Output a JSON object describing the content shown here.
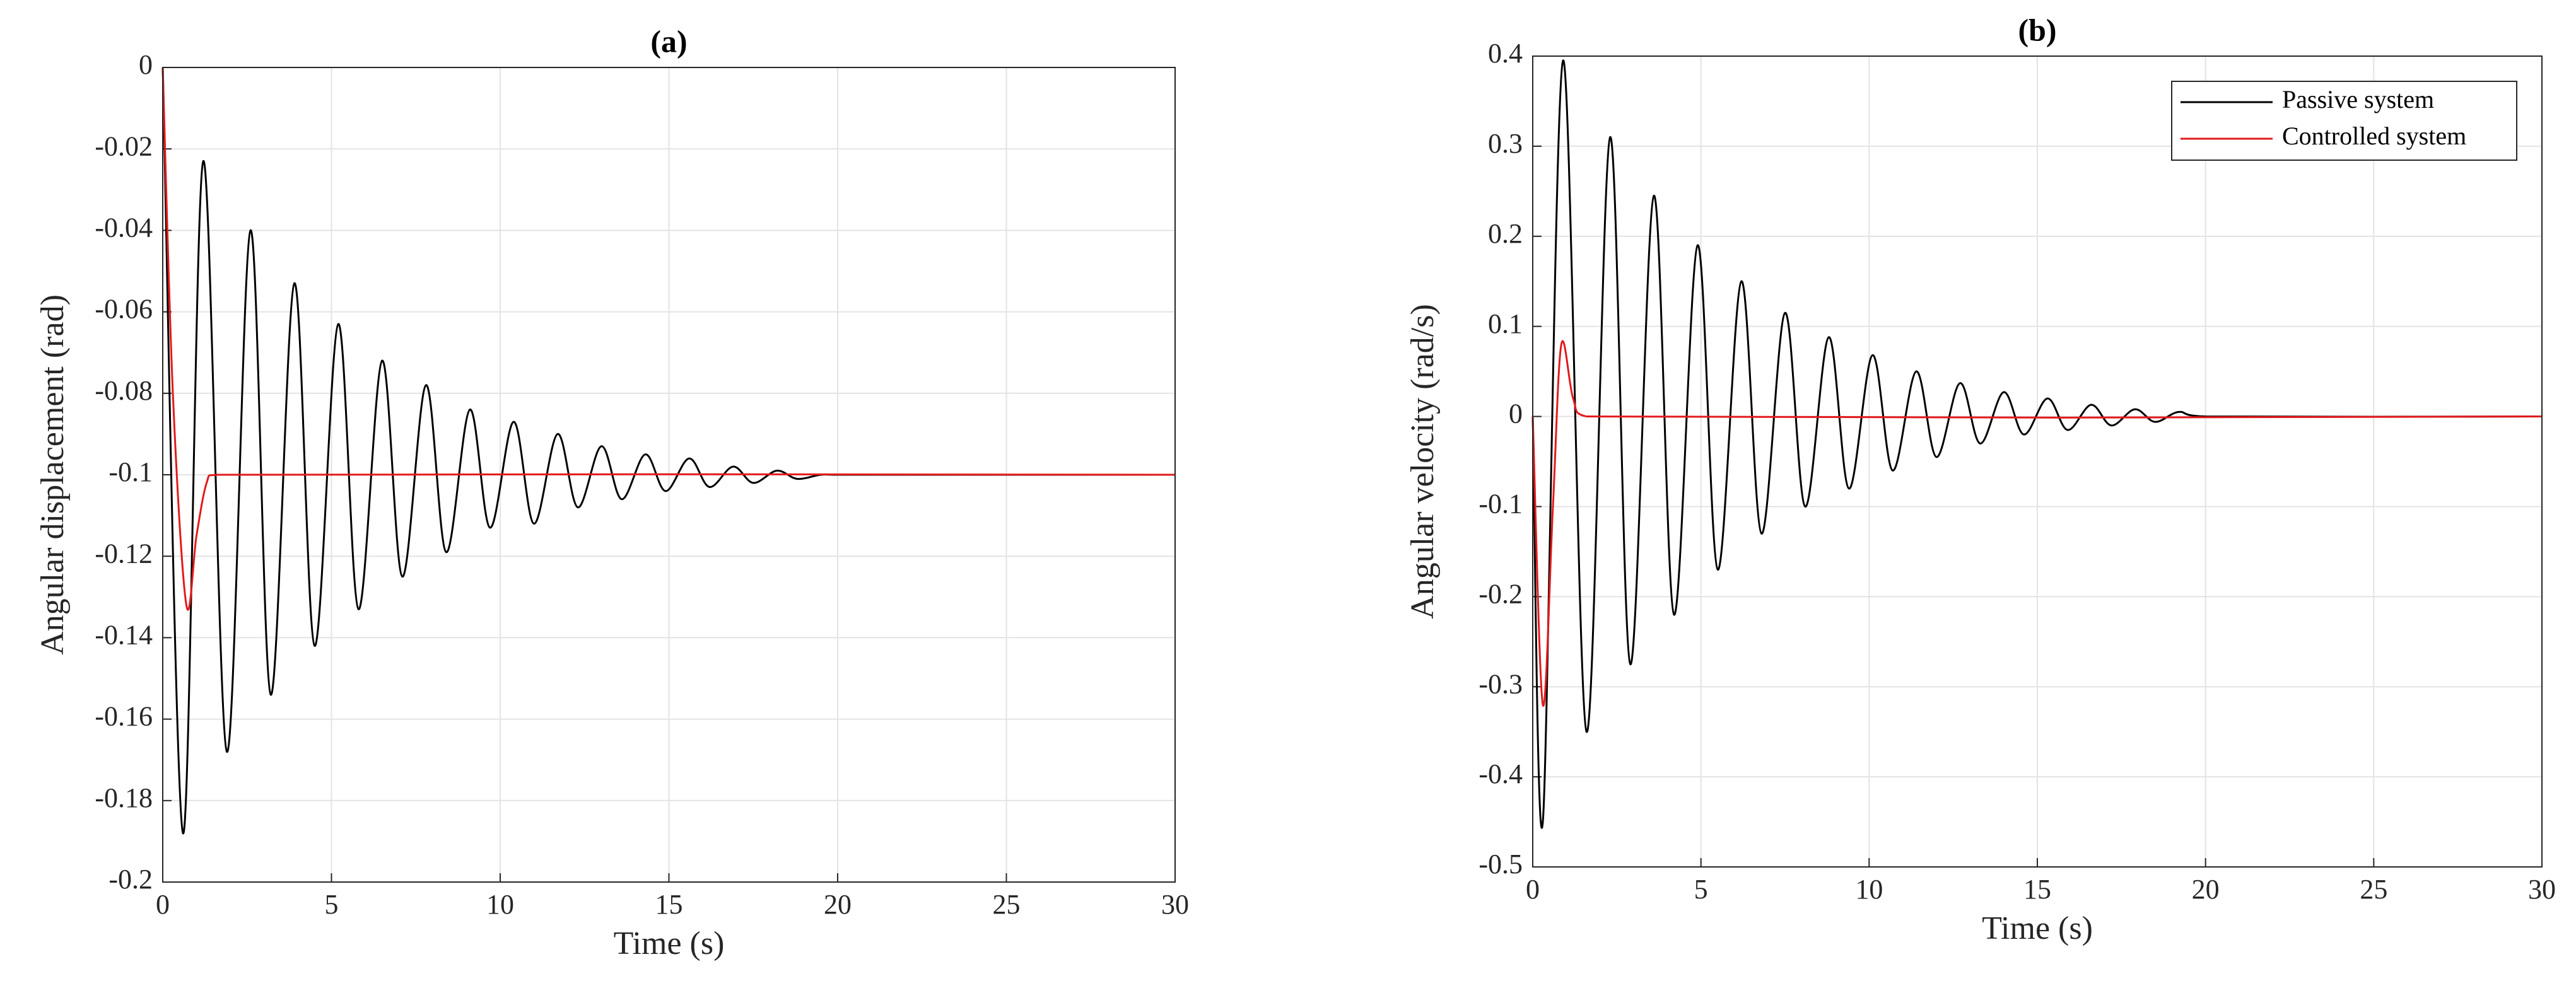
{
  "chart_data": [
    {
      "type": "line",
      "title": "(a)",
      "x_label": "Time (s)",
      "y_label": "Angular displacement (rad)",
      "xlim": [
        0,
        30
      ],
      "xticks": [
        0,
        5,
        10,
        15,
        20,
        25,
        30
      ],
      "ylim": [
        -0.2,
        0
      ],
      "yticks": [
        -0.2,
        -0.18,
        -0.16,
        -0.14,
        -0.12,
        -0.1,
        -0.08,
        -0.06,
        -0.04,
        -0.02,
        0
      ],
      "grid": true,
      "legend": false,
      "series": [
        {
          "color": "#000000",
          "x": [
            0,
            0.6,
            1.2,
            1.9,
            2.6,
            3.2,
            3.9,
            4.5,
            5.2,
            5.8,
            6.5,
            7.1,
            7.8,
            8.4,
            9.1,
            9.7,
            10.4,
            11.0,
            11.7,
            12.3,
            13.0,
            13.6,
            14.3,
            14.9,
            15.6,
            16.2,
            16.9,
            17.5,
            18.2,
            18.8,
            19.5,
            20,
            30
          ],
          "values": [
            0,
            -0.188,
            -0.023,
            -0.168,
            -0.04,
            -0.154,
            -0.053,
            -0.142,
            -0.063,
            -0.133,
            -0.072,
            -0.125,
            -0.078,
            -0.119,
            -0.084,
            -0.113,
            -0.087,
            -0.112,
            -0.09,
            -0.108,
            -0.093,
            -0.106,
            -0.095,
            -0.104,
            -0.096,
            -0.103,
            -0.098,
            -0.102,
            -0.099,
            -0.101,
            -0.1,
            -0.1,
            -0.1
          ]
        },
        {
          "color": "#e31a1c",
          "x": [
            0,
            0.3,
            0.7,
            1.0,
            1.3,
            1.6,
            30
          ],
          "values": [
            0,
            -0.08,
            -0.132,
            -0.115,
            -0.102,
            -0.1,
            -0.1
          ]
        }
      ]
    },
    {
      "type": "line",
      "title": "(b)",
      "x_label": "Time (s)",
      "y_label": "Angular velocity (rad/s)",
      "xlim": [
        0,
        30
      ],
      "xticks": [
        0,
        5,
        10,
        15,
        20,
        25,
        30
      ],
      "ylim": [
        -0.5,
        0.4
      ],
      "yticks": [
        -0.5,
        -0.4,
        -0.3,
        -0.2,
        -0.1,
        0,
        0.1,
        0.2,
        0.3,
        0.4
      ],
      "grid": true,
      "legend": "northeast",
      "series": [
        {
          "name": "Passive system",
          "color": "#000000",
          "x": [
            0,
            0.3,
            0.9,
            1.6,
            2.3,
            2.9,
            3.6,
            4.2,
            4.9,
            5.5,
            6.2,
            6.8,
            7.5,
            8.1,
            8.8,
            9.4,
            10.1,
            10.7,
            11.4,
            12.0,
            12.7,
            13.3,
            14.0,
            14.6,
            15.3,
            15.9,
            16.6,
            17.2,
            17.9,
            18.5,
            19.2,
            20,
            30
          ],
          "values": [
            0,
            -0.45,
            0.395,
            -0.35,
            0.31,
            -0.275,
            0.245,
            -0.22,
            0.19,
            -0.17,
            0.15,
            -0.13,
            0.115,
            -0.1,
            0.088,
            -0.08,
            0.068,
            -0.06,
            0.05,
            -0.045,
            0.037,
            -0.03,
            0.027,
            -0.02,
            0.02,
            -0.015,
            0.013,
            -0.01,
            0.008,
            -0.006,
            0.005,
            0,
            0
          ]
        },
        {
          "name": "Controlled system",
          "color": "#e31a1c",
          "x": [
            0,
            0.3,
            0.6,
            0.85,
            1.2,
            1.6,
            30
          ],
          "values": [
            0,
            -0.32,
            -0.1,
            0.08,
            0.02,
            0,
            0
          ]
        }
      ]
    }
  ]
}
